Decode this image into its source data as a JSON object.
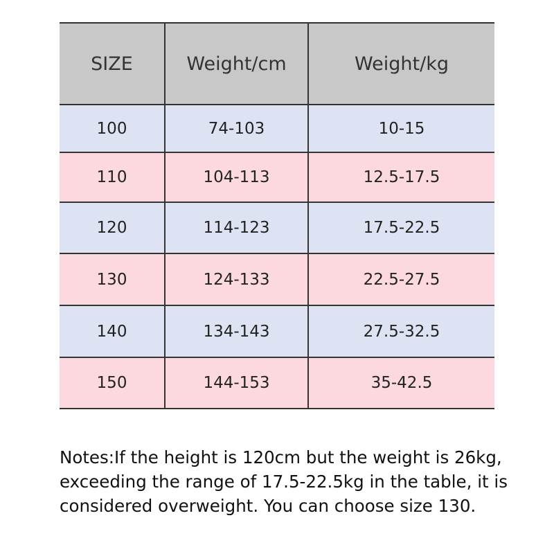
{
  "table": {
    "header": [
      "SIZE",
      "Weight/cm",
      "Weight/kg"
    ],
    "rows": [
      [
        "100",
        "74-103",
        "10-15"
      ],
      [
        "110",
        "104-113",
        "12.5-17.5"
      ],
      [
        "120",
        "114-123",
        "17.5-22.5"
      ],
      [
        "130",
        "124-133",
        "22.5-27.5"
      ],
      [
        "140",
        "134-143",
        "27.5-32.5"
      ],
      [
        "150",
        "144-153",
        "35-42.5"
      ]
    ]
  },
  "notes": [
    "Notes:If the height is 120cm but the weight is 26kg,",
    "exceeding the range of 17.5-22.5kg in the table, it is",
    "considered overweight. You can choose size 130."
  ]
}
